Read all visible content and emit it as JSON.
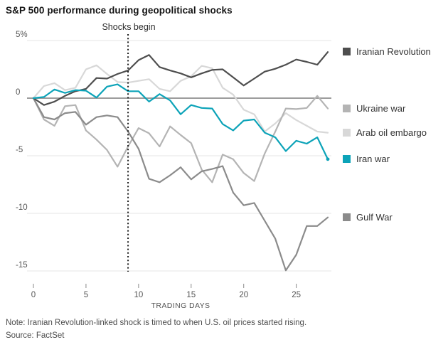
{
  "note": "Note: Iranian Revolution-linked shock is timed to when U.S. oil prices started rising.",
  "source": "Source: FactSet",
  "colors": {
    "grid": "#e4e4e4",
    "zero_line": "#9c9c9c",
    "shock_line": "#1f1f1f",
    "tick": "#8a8a8a",
    "axis_text": "#555555"
  },
  "chart_data": {
    "type": "line",
    "title": "S&P 500 performance during geopolitical shocks",
    "xlabel": "TRADING DAYS",
    "ylabel": "",
    "xlim": [
      0,
      28
    ],
    "ylim": [
      -15.5,
      5
    ],
    "grid": true,
    "legend_position": "right",
    "annotations": [
      {
        "text": "Shocks begin",
        "x_day": 9
      }
    ],
    "x_ticks": [
      0,
      5,
      10,
      15,
      20,
      25
    ],
    "y_ticks": [
      {
        "value": 5,
        "label": "5%"
      },
      {
        "value": 0,
        "label": "0"
      },
      {
        "value": -5,
        "label": "-5"
      },
      {
        "value": -10,
        "label": "-10"
      },
      {
        "value": -15,
        "label": "-15"
      }
    ],
    "x": [
      0,
      1,
      2,
      3,
      4,
      5,
      6,
      7,
      8,
      9,
      10,
      11,
      12,
      13,
      14,
      15,
      16,
      17,
      18,
      19,
      20,
      21,
      22,
      23,
      24,
      25,
      26,
      27,
      28
    ],
    "series": [
      {
        "name": "Iranian Revolution",
        "slug": "iranian-revolution",
        "color": "#4e4e4e",
        "values": [
          0,
          -0.6,
          -0.3,
          0.2,
          0.6,
          0.8,
          1.75,
          1.7,
          2.1,
          2.4,
          3.3,
          3.75,
          2.7,
          2.4,
          2.15,
          1.8,
          2.15,
          2.45,
          2.5,
          1.8,
          1.1,
          1.7,
          2.3,
          2.55,
          2.9,
          3.35,
          3.15,
          2.9,
          4.0
        ]
      },
      {
        "name": "Ukraine war",
        "slug": "ukraine-war",
        "color": "#b4b4b4",
        "values": [
          0,
          -1.85,
          -2.4,
          -0.7,
          -0.6,
          -2.8,
          -3.6,
          -4.5,
          -5.95,
          -4.2,
          -2.6,
          -3.05,
          -4.2,
          -2.45,
          -3.2,
          -3.9,
          -6.2,
          -7.3,
          -4.9,
          -5.3,
          -6.5,
          -7.2,
          -4.8,
          -2.9,
          -0.9,
          -0.95,
          -0.85,
          0.2,
          -0.9
        ]
      },
      {
        "name": "Arab oil embargo",
        "slug": "arab-oil-embargo",
        "color": "#d8d8d8",
        "values": [
          0,
          1.05,
          1.3,
          0.7,
          0.9,
          2.5,
          2.85,
          2.1,
          1.4,
          1.35,
          1.5,
          1.65,
          0.8,
          0.6,
          1.5,
          1.9,
          2.8,
          2.6,
          0.9,
          0.3,
          -1.0,
          -1.4,
          -2.9,
          -2.2,
          -1.3,
          -1.9,
          -2.4,
          -2.9,
          -3.0
        ]
      },
      {
        "name": "Iran war",
        "slug": "iran-war",
        "color": "#0ca3b8",
        "end_dot": true,
        "values": [
          0,
          0.1,
          0.75,
          0.45,
          0.7,
          0.65,
          0.05,
          1.0,
          1.2,
          0.6,
          0.6,
          -0.3,
          0.35,
          -0.2,
          -1.4,
          -0.6,
          -0.85,
          -0.9,
          -2.25,
          -2.8,
          -1.95,
          -1.85,
          -3.0,
          -3.4,
          -4.6,
          -3.7,
          -3.95,
          -3.4,
          -5.3
        ]
      },
      {
        "name": "Gulf War",
        "slug": "gulf-war",
        "color": "#8b8b8b",
        "values": [
          0,
          -1.65,
          -1.85,
          -1.3,
          -1.2,
          -2.3,
          -1.65,
          -1.5,
          -1.65,
          -2.9,
          -4.4,
          -7.0,
          -7.3,
          -6.7,
          -6.0,
          -7.05,
          -6.35,
          -6.15,
          -5.9,
          -8.2,
          -9.3,
          -9.1,
          -10.65,
          -12.2,
          -14.95,
          -13.6,
          -11.1,
          -11.1,
          -10.35
        ]
      }
    ]
  }
}
